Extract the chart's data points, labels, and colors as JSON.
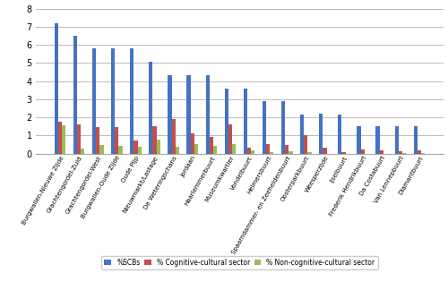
{
  "categories": [
    "Burgwallen-Nieuwe Zijde",
    "Grachtengordel-Zuid",
    "Grachtengordel-West",
    "Burgwallen-Oude Zijde",
    "Oude Pijp",
    "Nieuwmarkt/Lastage",
    "De Weteringschans",
    "Jordaan",
    "Haarlemmerbuurt",
    "Museumkwartier",
    "Vondelbuurt",
    "Helmersbuurt",
    "Spaarndammer- en Zeeheldenbuurt",
    "Oosterparkbuurt",
    "Weesperzijde",
    "IJselbuurt",
    "Frederik Hendrikbuurt",
    "Da Costabuurt",
    "Van Lennepbuurt",
    "Diamantbuurt"
  ],
  "scbs": [
    7.2,
    6.5,
    5.8,
    5.8,
    5.8,
    5.05,
    4.35,
    4.35,
    4.35,
    3.6,
    3.6,
    2.9,
    2.9,
    2.15,
    2.2,
    2.15,
    1.5,
    1.5,
    1.5,
    1.5
  ],
  "cognitive": [
    1.75,
    1.6,
    1.45,
    1.45,
    0.75,
    1.5,
    1.9,
    1.1,
    0.9,
    1.6,
    0.35,
    0.55,
    0.5,
    1.0,
    0.35,
    0.1,
    0.25,
    0.2,
    0.15,
    0.2
  ],
  "non_cognitive": [
    1.55,
    0.3,
    0.5,
    0.45,
    0.4,
    0.8,
    0.4,
    0.55,
    0.45,
    0.55,
    0.2,
    0.1,
    0.15,
    0.1,
    0.0,
    0.0,
    0.0,
    0.0,
    0.05,
    0.05
  ],
  "bar_width": 0.2,
  "colors": {
    "scbs": "#4472C4",
    "cognitive": "#C0504D",
    "non_cognitive": "#9BBB59"
  },
  "legend_labels": [
    "%SCBs",
    "% Cognitive-cultural sector",
    "% Non-cognitive-cultural sector"
  ],
  "ylim": [
    0,
    8
  ],
  "yticks": [
    0,
    1,
    2,
    3,
    4,
    5,
    6,
    7,
    8
  ],
  "background_color": "#FFFFFF",
  "grid_color": "#BBBBBB"
}
